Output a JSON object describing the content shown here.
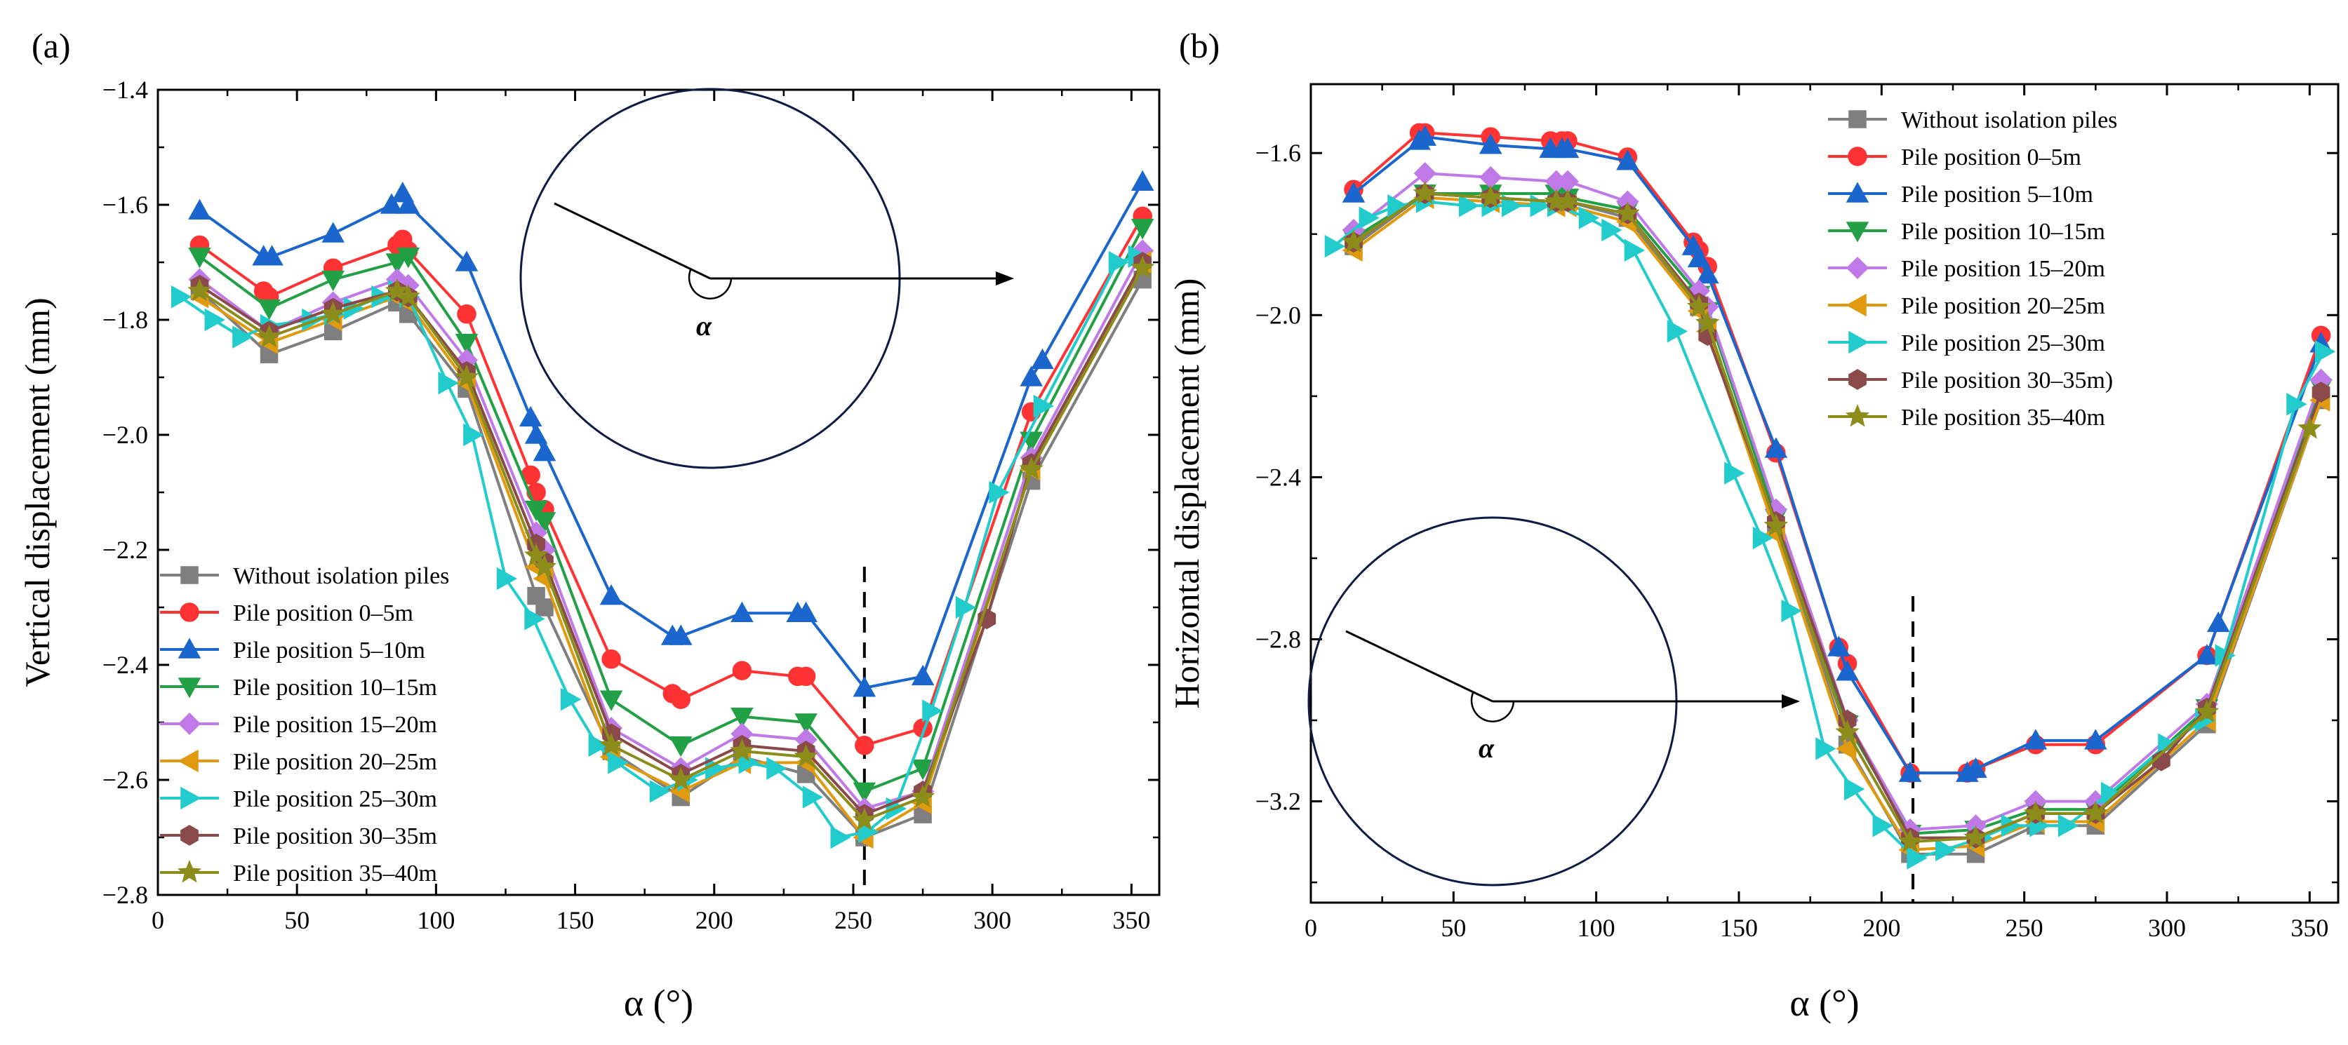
{
  "chart_data": [
    {
      "type": "line",
      "panel_label": "(a)",
      "xlabel": "α (°)",
      "ylabel": "Vertical displacement (mm)",
      "xlim": [
        0,
        360
      ],
      "ylim": [
        -2.8,
        -1.4
      ],
      "xticks": [
        0,
        50,
        100,
        150,
        200,
        250,
        300,
        350
      ],
      "yticks": [
        -2.8,
        -2.6,
        -2.4,
        -2.2,
        -2.0,
        -1.8,
        -1.6,
        -1.4
      ],
      "tick_labels_x": [
        "0",
        "50",
        "100",
        "150",
        "200",
        "250",
        "300",
        "350"
      ],
      "tick_labels_y": [
        "−2.8",
        "−2.6",
        "−2.4",
        "−2.2",
        "−2.0",
        "−1.8",
        "−1.6",
        "−1.4"
      ],
      "grid": false,
      "legend_position": "bottom-left",
      "dashed_vline_x": 254,
      "inset_angle_label": "α",
      "series": [
        {
          "name": "Without isolation piles",
          "color": "#7f7f7f",
          "marker": "square",
          "x": [
            15,
            40,
            63,
            86,
            90,
            111,
            136,
            139,
            163,
            188,
            210,
            233,
            254,
            275,
            314,
            354
          ],
          "y": [
            -1.75,
            -1.86,
            -1.82,
            -1.77,
            -1.79,
            -1.92,
            -2.28,
            -2.3,
            -2.55,
            -2.63,
            -2.56,
            -2.59,
            -2.7,
            -2.66,
            -2.08,
            -1.73
          ]
        },
        {
          "name": "Pile position 0–5m",
          "color": "#ff3333",
          "marker": "circle",
          "x": [
            15,
            38,
            40,
            63,
            86,
            88,
            90,
            111,
            134,
            136,
            139,
            163,
            185,
            188,
            210,
            230,
            233,
            254,
            275,
            314,
            354
          ],
          "y": [
            -1.67,
            -1.75,
            -1.76,
            -1.71,
            -1.67,
            -1.66,
            -1.68,
            -1.79,
            -2.07,
            -2.1,
            -2.13,
            -2.39,
            -2.45,
            -2.46,
            -2.41,
            -2.42,
            -2.42,
            -2.54,
            -2.51,
            -1.96,
            -1.62
          ]
        },
        {
          "name": "Pile position 5–10m",
          "color": "#1a66cc",
          "marker": "triangle-up",
          "x": [
            15,
            38,
            41,
            63,
            84,
            88,
            90,
            111,
            134,
            136,
            139,
            163,
            185,
            188,
            210,
            230,
            233,
            254,
            275,
            314,
            318,
            354
          ],
          "y": [
            -1.61,
            -1.69,
            -1.69,
            -1.65,
            -1.6,
            -1.58,
            -1.6,
            -1.7,
            -1.97,
            -2.0,
            -2.03,
            -2.28,
            -2.35,
            -2.35,
            -2.31,
            -2.31,
            -2.31,
            -2.44,
            -2.42,
            -1.9,
            -1.87,
            -1.56
          ]
        },
        {
          "name": "Pile position 10–15m",
          "color": "#22a045",
          "marker": "triangle-down",
          "x": [
            15,
            40,
            63,
            86,
            90,
            111,
            136,
            139,
            163,
            188,
            210,
            233,
            254,
            275,
            314,
            354
          ],
          "y": [
            -1.69,
            -1.78,
            -1.73,
            -1.7,
            -1.69,
            -1.84,
            -2.13,
            -2.15,
            -2.46,
            -2.54,
            -2.49,
            -2.5,
            -2.62,
            -2.58,
            -2.01,
            -1.64
          ]
        },
        {
          "name": "Pile position 15–20m",
          "color": "#c07ae8",
          "marker": "diamond",
          "x": [
            15,
            40,
            63,
            86,
            90,
            111,
            136,
            139,
            163,
            188,
            210,
            233,
            254,
            275,
            314,
            354
          ],
          "y": [
            -1.73,
            -1.82,
            -1.77,
            -1.73,
            -1.74,
            -1.87,
            -2.17,
            -2.2,
            -2.51,
            -2.58,
            -2.52,
            -2.53,
            -2.65,
            -2.62,
            -2.04,
            -1.68
          ]
        },
        {
          "name": "Pile position 20–25m",
          "color": "#e09a10",
          "marker": "triangle-left",
          "x": [
            15,
            40,
            63,
            86,
            90,
            111,
            136,
            139,
            163,
            188,
            210,
            233,
            254,
            275,
            314,
            354
          ],
          "y": [
            -1.76,
            -1.84,
            -1.8,
            -1.76,
            -1.77,
            -1.91,
            -2.23,
            -2.25,
            -2.56,
            -2.62,
            -2.57,
            -2.57,
            -2.7,
            -2.64,
            -2.06,
            -1.7
          ]
        },
        {
          "name": "Pile position 25–30m",
          "color": "#22cccc",
          "marker": "triangle-right",
          "x": [
            8,
            20,
            30,
            40,
            55,
            63,
            70,
            80,
            86,
            90,
            104,
            113,
            125,
            135,
            148,
            158,
            165,
            180,
            190,
            200,
            212,
            222,
            235,
            245,
            255,
            265,
            278,
            290,
            302,
            318,
            345,
            352
          ],
          "y": [
            -1.76,
            -1.8,
            -1.83,
            -1.81,
            -1.8,
            -1.79,
            -1.78,
            -1.76,
            -1.75,
            -1.76,
            -1.91,
            -2.0,
            -2.25,
            -2.32,
            -2.46,
            -2.54,
            -2.57,
            -2.62,
            -2.6,
            -2.58,
            -2.57,
            -2.58,
            -2.63,
            -2.7,
            -2.69,
            -2.65,
            -2.48,
            -2.3,
            -2.1,
            -1.95,
            -1.7,
            -1.69
          ]
        },
        {
          "name": "Pile position 30–35m",
          "color": "#8b4a4a",
          "marker": "hexagon",
          "x": [
            15,
            40,
            63,
            86,
            90,
            111,
            136,
            139,
            163,
            188,
            210,
            233,
            254,
            275,
            298,
            314,
            354
          ],
          "y": [
            -1.74,
            -1.82,
            -1.78,
            -1.75,
            -1.76,
            -1.89,
            -2.19,
            -2.22,
            -2.52,
            -2.59,
            -2.54,
            -2.55,
            -2.66,
            -2.62,
            -2.32,
            -2.05,
            -1.7
          ]
        },
        {
          "name": "Pile position 35–40m",
          "color": "#8c8c1a",
          "marker": "star",
          "x": [
            15,
            40,
            63,
            86,
            90,
            111,
            136,
            139,
            163,
            188,
            210,
            233,
            254,
            275,
            314,
            354
          ],
          "y": [
            -1.75,
            -1.83,
            -1.79,
            -1.75,
            -1.76,
            -1.9,
            -2.21,
            -2.23,
            -2.54,
            -2.6,
            -2.55,
            -2.56,
            -2.67,
            -2.63,
            -2.06,
            -1.71
          ]
        }
      ]
    },
    {
      "type": "line",
      "panel_label": "(b)",
      "xlabel": "α (°)",
      "ylabel": "Horizontal displacement (mm)",
      "xlim": [
        0,
        360
      ],
      "ylim": [
        -3.45,
        -1.43
      ],
      "xticks": [
        0,
        50,
        100,
        150,
        200,
        250,
        300,
        350
      ],
      "yticks": [
        -3.2,
        -2.8,
        -2.4,
        -2.0,
        -1.6
      ],
      "tick_labels_x": [
        "0",
        "50",
        "100",
        "150",
        "200",
        "250",
        "300",
        "350"
      ],
      "tick_labels_y": [
        "−3.2",
        "−2.8",
        "−2.4",
        "−2.0",
        "−1.6"
      ],
      "grid": false,
      "legend_position": "top-right",
      "dashed_vline_x": 211,
      "inset_angle_label": "α",
      "series": [
        {
          "name": "Without isolation piles",
          "color": "#7f7f7f",
          "marker": "square",
          "x": [
            15,
            40,
            63,
            86,
            90,
            111,
            136,
            139,
            163,
            188,
            210,
            233,
            254,
            275,
            314,
            354
          ],
          "y": [
            -1.83,
            -1.7,
            -1.71,
            -1.72,
            -1.72,
            -1.76,
            -1.98,
            -2.03,
            -2.52,
            -3.06,
            -3.33,
            -3.33,
            -3.26,
            -3.26,
            -3.01,
            -2.21
          ]
        },
        {
          "name": "Pile position 0–5m",
          "color": "#ff3333",
          "marker": "circle",
          "x": [
            15,
            38,
            40,
            63,
            84,
            88,
            90,
            111,
            134,
            136,
            139,
            163,
            185,
            188,
            210,
            230,
            233,
            254,
            275,
            314,
            354
          ],
          "y": [
            -1.69,
            -1.55,
            -1.55,
            -1.56,
            -1.57,
            -1.57,
            -1.57,
            -1.61,
            -1.82,
            -1.84,
            -1.88,
            -2.34,
            -2.82,
            -2.86,
            -3.13,
            -3.13,
            -3.12,
            -3.06,
            -3.06,
            -2.84,
            -2.05
          ]
        },
        {
          "name": "Pile position 5–10m",
          "color": "#1a66cc",
          "marker": "triangle-up",
          "x": [
            15,
            38,
            40,
            63,
            84,
            88,
            90,
            111,
            134,
            136,
            139,
            163,
            185,
            188,
            210,
            230,
            233,
            254,
            275,
            314,
            318,
            354
          ],
          "y": [
            -1.7,
            -1.57,
            -1.56,
            -1.58,
            -1.59,
            -1.59,
            -1.59,
            -1.62,
            -1.83,
            -1.86,
            -1.9,
            -2.33,
            -2.82,
            -2.88,
            -3.13,
            -3.13,
            -3.12,
            -3.05,
            -3.05,
            -2.84,
            -2.76,
            -2.07
          ]
        },
        {
          "name": "Pile position 10–15m",
          "color": "#22a045",
          "marker": "triangle-down",
          "x": [
            15,
            40,
            63,
            86,
            90,
            111,
            136,
            139,
            163,
            188,
            210,
            233,
            254,
            275,
            314,
            354
          ],
          "y": [
            -1.81,
            -1.7,
            -1.7,
            -1.7,
            -1.71,
            -1.74,
            -1.95,
            -1.99,
            -2.5,
            -3.01,
            -3.28,
            -3.27,
            -3.22,
            -3.22,
            -2.97,
            -2.18
          ]
        },
        {
          "name": "Pile position 15–20m",
          "color": "#c07ae8",
          "marker": "diamond",
          "x": [
            15,
            40,
            63,
            86,
            90,
            111,
            136,
            139,
            163,
            188,
            210,
            233,
            254,
            275,
            314,
            354
          ],
          "y": [
            -1.79,
            -1.65,
            -1.66,
            -1.67,
            -1.67,
            -1.72,
            -1.94,
            -1.98,
            -2.48,
            -3.0,
            -3.27,
            -3.26,
            -3.2,
            -3.2,
            -2.96,
            -2.16
          ]
        },
        {
          "name": "Pile position 20–25m",
          "color": "#e09a10",
          "marker": "triangle-left",
          "x": [
            15,
            40,
            63,
            86,
            90,
            111,
            136,
            139,
            163,
            188,
            210,
            233,
            254,
            275,
            314,
            354
          ],
          "y": [
            -1.84,
            -1.71,
            -1.72,
            -1.73,
            -1.73,
            -1.77,
            -1.99,
            -2.04,
            -2.54,
            -3.07,
            -3.32,
            -3.31,
            -3.25,
            -3.25,
            -3.0,
            -2.21
          ]
        },
        {
          "name": "Pile position 25–30m",
          "color": "#22cccc",
          "marker": "triangle-right",
          "x": [
            8,
            20,
            30,
            40,
            55,
            63,
            70,
            80,
            86,
            97,
            105,
            113,
            128,
            148,
            158,
            168,
            180,
            190,
            200,
            212,
            222,
            235,
            245,
            255,
            265,
            280,
            300,
            313,
            320,
            345,
            355
          ],
          "y": [
            -1.83,
            -1.76,
            -1.73,
            -1.72,
            -1.73,
            -1.73,
            -1.73,
            -1.73,
            -1.73,
            -1.76,
            -1.79,
            -1.84,
            -2.04,
            -2.39,
            -2.55,
            -2.73,
            -3.07,
            -3.17,
            -3.26,
            -3.34,
            -3.32,
            -3.29,
            -3.26,
            -3.26,
            -3.26,
            -3.18,
            -3.06,
            -3.0,
            -2.84,
            -2.22,
            -2.09
          ]
        },
        {
          "name": "Pile position 30–35m)",
          "color": "#8b4a4a",
          "marker": "hexagon",
          "x": [
            15,
            40,
            63,
            86,
            90,
            111,
            136,
            139,
            163,
            188,
            210,
            233,
            254,
            275,
            298,
            314,
            354
          ],
          "y": [
            -1.82,
            -1.7,
            -1.71,
            -1.72,
            -1.72,
            -1.75,
            -1.97,
            -2.05,
            -2.51,
            -3.0,
            -3.29,
            -3.29,
            -3.23,
            -3.23,
            -3.1,
            -2.97,
            -2.19
          ]
        },
        {
          "name": "Pile position 35–40m",
          "color": "#8c8c1a",
          "marker": "star",
          "x": [
            15,
            40,
            63,
            86,
            90,
            111,
            136,
            139,
            163,
            188,
            210,
            233,
            254,
            275,
            314,
            350
          ],
          "y": [
            -1.82,
            -1.7,
            -1.71,
            -1.72,
            -1.72,
            -1.75,
            -1.98,
            -2.02,
            -2.52,
            -3.03,
            -3.3,
            -3.29,
            -3.23,
            -3.23,
            -2.98,
            -2.28
          ]
        }
      ]
    }
  ]
}
